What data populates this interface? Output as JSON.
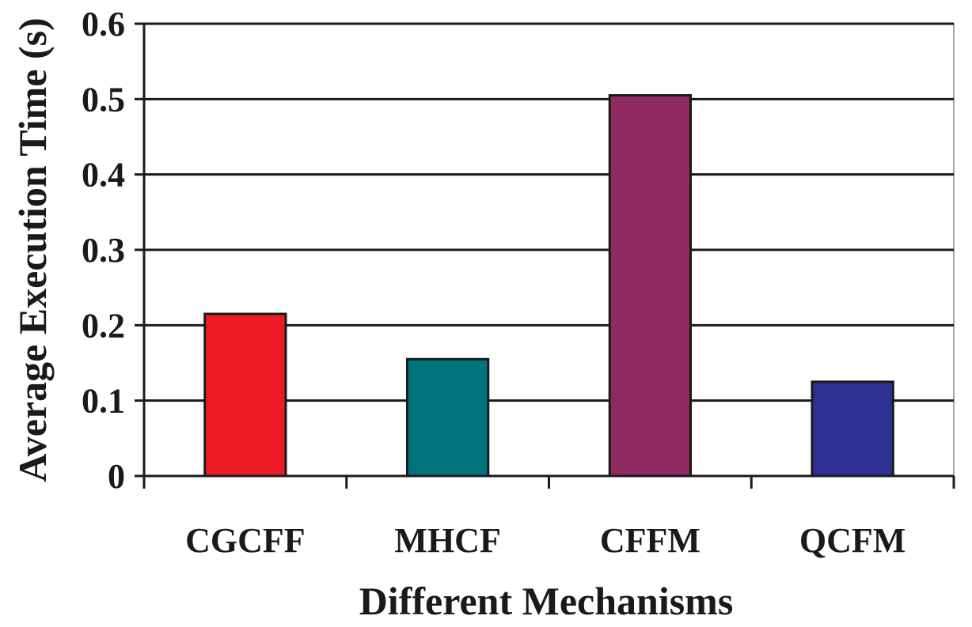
{
  "chart_data": {
    "type": "bar",
    "title": "",
    "xlabel": "Different Mechanisms",
    "ylabel": "Average Execution Time (s)",
    "categories": [
      "CGCFF",
      "MHCF",
      "CFFM",
      "QCFM"
    ],
    "values": [
      0.215,
      0.155,
      0.505,
      0.125
    ],
    "bar_colors": [
      "#ed1c24",
      "#00747c",
      "#8f2a60",
      "#2e3192"
    ],
    "ylim": [
      0,
      0.6
    ],
    "yticks": [
      0,
      0.1,
      0.2,
      0.3,
      0.4,
      0.5,
      0.6
    ],
    "ytick_labels": [
      "0",
      "0.1",
      "0.2",
      "0.3",
      "0.4",
      "0.5",
      "0.6"
    ],
    "grid": true,
    "legend": "none"
  }
}
